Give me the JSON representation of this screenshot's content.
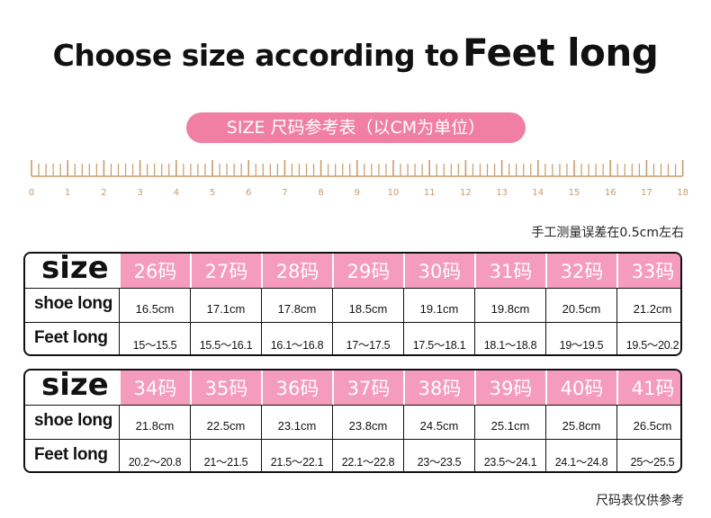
{
  "heading": {
    "prefix": "Choose size according to",
    "emphasis": "Feet long"
  },
  "banner": "SIZE 尺码参考表（以CM为单位）",
  "ruler": {
    "labels": [
      "0",
      "1",
      "2",
      "3",
      "4",
      "5",
      "6",
      "7",
      "8",
      "9",
      "10",
      "11",
      "12",
      "13",
      "14",
      "15",
      "16",
      "17",
      "18"
    ],
    "color": "#c89b6a"
  },
  "note_error": "手工测量误差在0.5cm左右",
  "tables": [
    {
      "size_label": "size",
      "shoe_long_label": "shoe long",
      "feet_long_label": "Feet long",
      "sizes": [
        "26码",
        "27码",
        "28码",
        "29码",
        "30码",
        "31码",
        "32码",
        "33码"
      ],
      "shoe_long": [
        "16.5cm",
        "17.1cm",
        "17.8cm",
        "18.5cm",
        "19.1cm",
        "19.8cm",
        "20.5cm",
        "21.2cm"
      ],
      "feet_long": [
        "15～15.5",
        "15.5～16.1",
        "16.1～16.8",
        "17～17.5",
        "17.5～18.1",
        "18.1～18.8",
        "19～19.5",
        "19.5～20.2"
      ]
    },
    {
      "size_label": "size",
      "shoe_long_label": "shoe long",
      "feet_long_label": "Feet long",
      "sizes": [
        "34码",
        "35码",
        "36码",
        "37码",
        "38码",
        "39码",
        "40码",
        "41码"
      ],
      "shoe_long": [
        "21.8cm",
        "22.5cm",
        "23.1cm",
        "23.8cm",
        "24.5cm",
        "25.1cm",
        "25.8cm",
        "26.5cm"
      ],
      "feet_long": [
        "20.2～20.8",
        "21～21.5",
        "21.5～22.1",
        "22.1～22.8",
        "23～23.5",
        "23.5～24.1",
        "24.1～24.8",
        "25～25.5"
      ]
    }
  ],
  "note_reference": "尺码表仅供参考",
  "colors": {
    "pill": "#f07fa3",
    "size_cells": "#f59bbb",
    "ruler": "#c89b6a"
  }
}
